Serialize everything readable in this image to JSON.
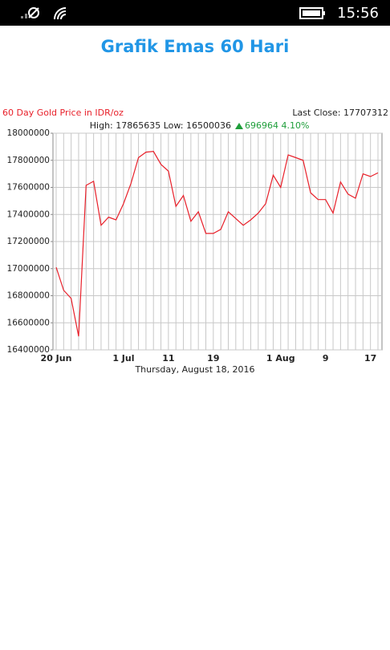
{
  "status_bar": {
    "time": "15:56"
  },
  "app": {
    "title": "Grafik Emas 60 Hari"
  },
  "chart_data": {
    "type": "line",
    "title": "60 Day Gold Price in IDR/oz",
    "last_close": "Last Close: 17707312",
    "stats": "High: 17865635 Low: 16500036",
    "change": "696964 4.10%",
    "x_label": "Thursday, August 18, 2016",
    "categories": [
      "20 Jun",
      null,
      null,
      null,
      null,
      null,
      null,
      null,
      null,
      "1 Jul",
      null,
      null,
      null,
      null,
      null,
      "11",
      null,
      null,
      null,
      null,
      null,
      "19",
      null,
      null,
      null,
      null,
      null,
      null,
      null,
      null,
      "1 Aug",
      null,
      null,
      null,
      null,
      null,
      "9",
      null,
      null,
      null,
      null,
      null,
      "17",
      null
    ],
    "series": [
      {
        "name": "Gold Price",
        "color": "#e8202a",
        "values": [
          17010000,
          16840000,
          16780000,
          16500036,
          17615000,
          17645000,
          17320000,
          17380000,
          17360000,
          17480000,
          17630000,
          17820000,
          17860000,
          17865635,
          17770000,
          17720000,
          17460000,
          17540000,
          17350000,
          17420000,
          17260000,
          17260000,
          17290000,
          17420000,
          17370000,
          17320000,
          17360000,
          17410000,
          17480000,
          17690000,
          17600000,
          17840000,
          17820000,
          17800000,
          17560000,
          17510000,
          17510000,
          17410000,
          17640000,
          17550000,
          17520000,
          17700000,
          17680000,
          17707312
        ]
      }
    ],
    "ylim": [
      16400000,
      18000000
    ],
    "yticks": [
      16400000,
      16600000,
      16800000,
      17000000,
      17200000,
      17400000,
      17600000,
      17800000,
      18000000
    ],
    "grid": true
  }
}
